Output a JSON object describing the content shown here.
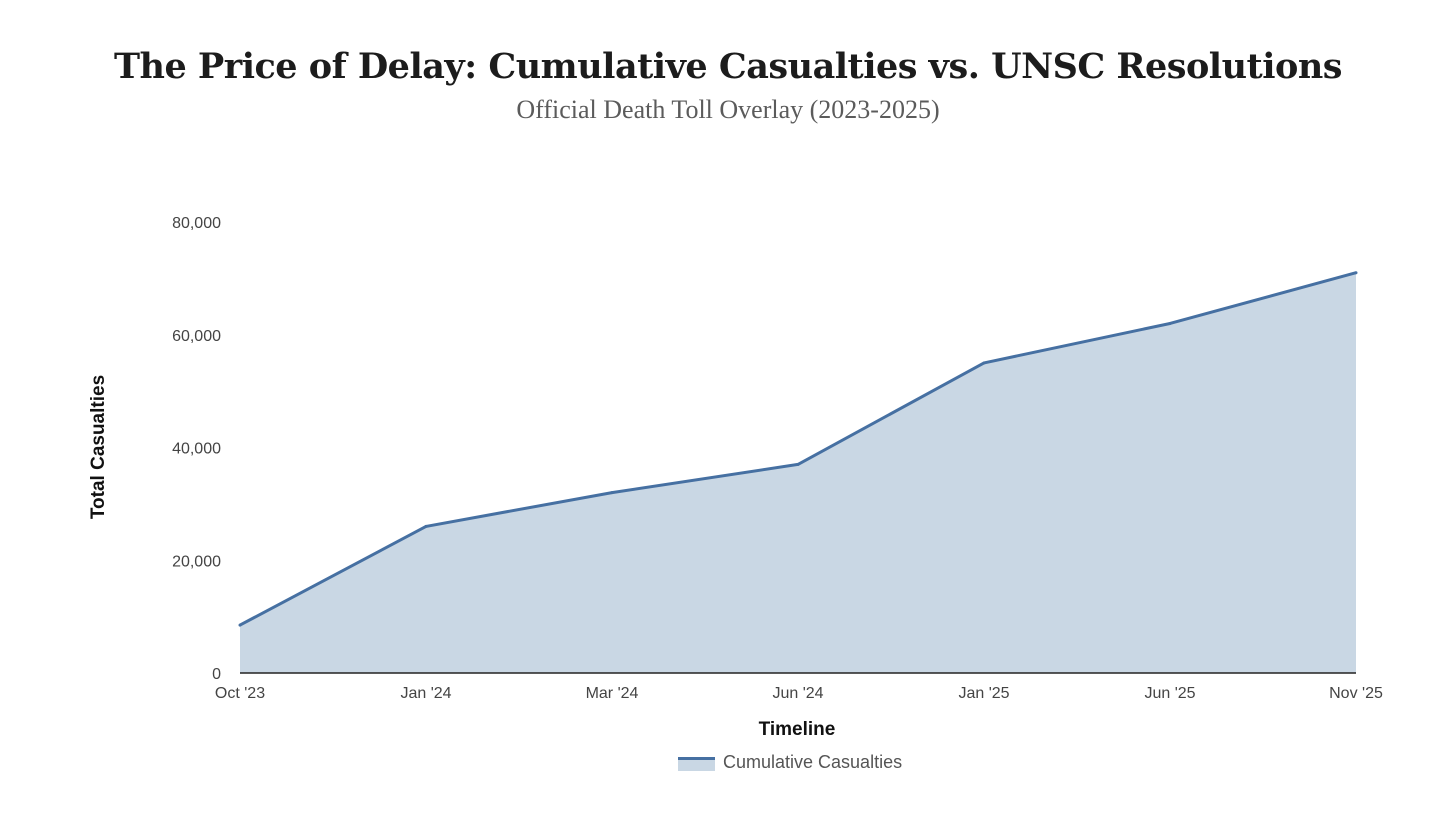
{
  "header": {
    "title": "The Price of Delay: Cumulative Casualties vs. UNSC Resolutions",
    "subtitle": "Official Death Toll Overlay (2023-2025)"
  },
  "colors": {
    "line": "#4670a2",
    "area": "#c9d7e4",
    "axis": "#222222"
  },
  "chart_data": {
    "type": "area",
    "title": "The Price of Delay: Cumulative Casualties vs. UNSC Resolutions",
    "subtitle": "Official Death Toll Overlay (2023-2025)",
    "xlabel": "Timeline",
    "ylabel": "Total Casualties",
    "categories": [
      "Oct '23",
      "Jan '24",
      "Mar '24",
      "Jun '24",
      "Jan '25",
      "Jun '25",
      "Nov '25"
    ],
    "series": [
      {
        "name": "Cumulative Casualties",
        "values": [
          8500,
          26000,
          32000,
          37000,
          55000,
          62000,
          71000
        ]
      }
    ],
    "ylim": [
      0,
      80000
    ],
    "yticks": [
      0,
      20000,
      40000,
      60000,
      80000
    ],
    "ytick_labels": [
      "0",
      "20,000",
      "40,000",
      "60,000",
      "80,000"
    ],
    "grid": false,
    "legend_position": "bottom"
  }
}
